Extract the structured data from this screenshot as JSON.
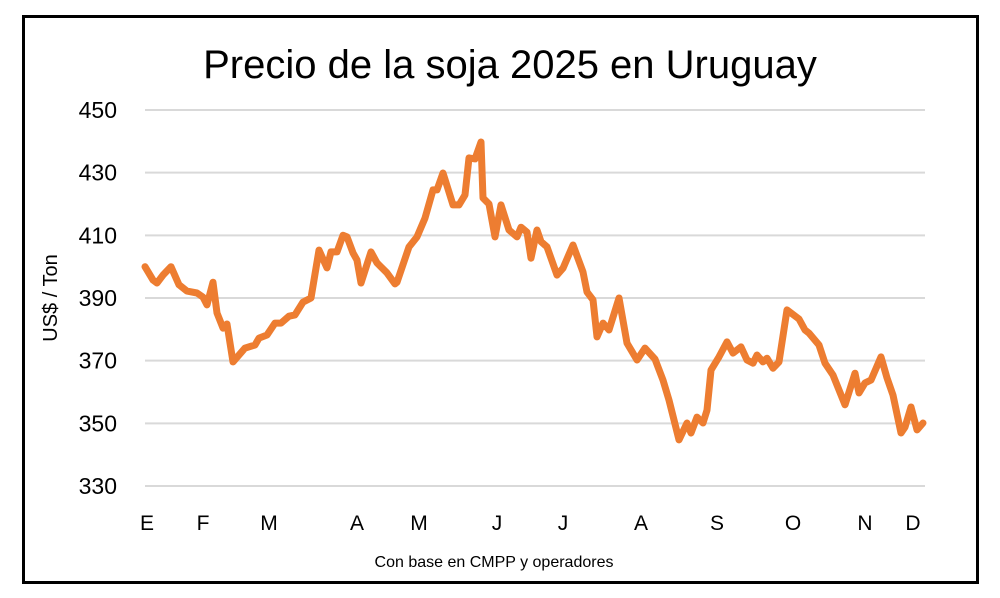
{
  "chart_data": {
    "type": "line",
    "title": "Precio de la soja 2025 en Uruguay",
    "ylabel": "US$ / Ton",
    "xlabel": "",
    "source_note": "Con base en CMPP y operadores",
    "ylim": [
      330,
      450
    ],
    "yticks": [
      450,
      430,
      410,
      390,
      370,
      350,
      330
    ],
    "xlim": [
      0,
      390
    ],
    "grid": true,
    "line_color": "#ED7D31",
    "xticks": [
      {
        "label": "E",
        "x": 1
      },
      {
        "label": "F",
        "x": 29
      },
      {
        "label": "M",
        "x": 62
      },
      {
        "label": "A",
        "x": 106
      },
      {
        "label": "M",
        "x": 137
      },
      {
        "label": "J",
        "x": 176
      },
      {
        "label": "J",
        "x": 209
      },
      {
        "label": "A",
        "x": 248
      },
      {
        "label": "S",
        "x": 286
      },
      {
        "label": "O",
        "x": 324
      },
      {
        "label": "N",
        "x": 360
      },
      {
        "label": "D",
        "x": 384
      }
    ],
    "series": [
      {
        "points": [
          [
            0,
            400
          ],
          [
            4,
            395.7
          ],
          [
            6,
            394.8
          ],
          [
            9,
            397.3
          ],
          [
            13,
            400
          ],
          [
            17,
            394.2
          ],
          [
            21,
            392.2
          ],
          [
            26,
            391.6
          ],
          [
            29,
            390.3
          ],
          [
            31,
            387.8
          ],
          [
            34,
            395
          ],
          [
            36,
            385.2
          ],
          [
            39,
            380.4
          ],
          [
            41,
            381.7
          ],
          [
            44,
            369.6
          ],
          [
            50,
            374
          ],
          [
            55,
            375
          ],
          [
            57,
            377.2
          ],
          [
            61,
            378.2
          ],
          [
            65,
            382
          ],
          [
            68,
            382
          ],
          [
            72,
            384.2
          ],
          [
            75,
            384.6
          ],
          [
            79,
            388.7
          ],
          [
            83,
            390
          ],
          [
            87,
            405.3
          ],
          [
            91,
            399.6
          ],
          [
            93,
            404.7
          ],
          [
            96,
            404.7
          ],
          [
            99,
            410
          ],
          [
            101,
            409.5
          ],
          [
            104,
            404.4
          ],
          [
            106,
            402.1
          ],
          [
            108,
            394.8
          ],
          [
            113,
            404.7
          ],
          [
            116,
            401.2
          ],
          [
            121,
            398
          ],
          [
            125,
            394.5
          ],
          [
            126,
            395
          ],
          [
            132,
            406.3
          ],
          [
            136,
            409.5
          ],
          [
            140,
            415.5
          ],
          [
            144,
            424.5
          ],
          [
            146,
            424.5
          ],
          [
            149,
            429.9
          ],
          [
            154,
            419.7
          ],
          [
            157,
            419.7
          ],
          [
            160,
            422.9
          ],
          [
            162,
            434.7
          ],
          [
            165,
            434.4
          ],
          [
            168,
            439.8
          ],
          [
            169,
            421.9
          ],
          [
            172,
            420
          ],
          [
            175,
            409.5
          ],
          [
            178,
            419.7
          ],
          [
            182,
            411.7
          ],
          [
            186,
            409.5
          ],
          [
            188,
            412.6
          ],
          [
            191,
            411
          ],
          [
            193,
            402.7
          ],
          [
            196,
            411.7
          ],
          [
            198,
            408
          ],
          [
            201,
            406.3
          ],
          [
            206,
            397.3
          ],
          [
            209,
            399.5
          ],
          [
            214,
            406.9
          ],
          [
            219,
            398.3
          ],
          [
            221,
            391.9
          ],
          [
            224,
            389.4
          ],
          [
            226,
            377.6
          ],
          [
            229,
            382
          ],
          [
            232,
            379.8
          ],
          [
            237,
            390
          ],
          [
            241,
            375.6
          ],
          [
            246,
            370.2
          ],
          [
            250,
            374
          ],
          [
            255,
            370.5
          ],
          [
            259,
            363.8
          ],
          [
            262,
            357.4
          ],
          [
            267,
            344.7
          ],
          [
            271,
            350.1
          ],
          [
            273,
            346.9
          ],
          [
            276,
            352
          ],
          [
            279,
            350.1
          ],
          [
            281,
            354.2
          ],
          [
            283,
            367
          ],
          [
            287,
            371.2
          ],
          [
            291,
            376
          ],
          [
            294,
            372.4
          ],
          [
            298,
            374.4
          ],
          [
            301,
            370.2
          ],
          [
            304,
            369.2
          ],
          [
            306,
            371.8
          ],
          [
            309,
            369.6
          ],
          [
            311,
            370.8
          ],
          [
            314,
            367.6
          ],
          [
            317,
            369.6
          ],
          [
            321,
            386.2
          ],
          [
            327,
            383.3
          ],
          [
            330,
            379.8
          ],
          [
            332,
            378.8
          ],
          [
            337,
            375
          ],
          [
            340,
            369.2
          ],
          [
            344,
            365.4
          ],
          [
            350,
            355.9
          ],
          [
            355,
            366
          ],
          [
            357,
            359.7
          ],
          [
            360,
            362.9
          ],
          [
            363,
            363.8
          ],
          [
            368,
            371.2
          ],
          [
            371,
            364.5
          ],
          [
            374,
            359
          ],
          [
            378,
            346.9
          ],
          [
            380,
            348.8
          ],
          [
            383,
            355.2
          ],
          [
            386,
            347.9
          ],
          [
            389,
            350.1
          ]
        ]
      }
    ]
  }
}
